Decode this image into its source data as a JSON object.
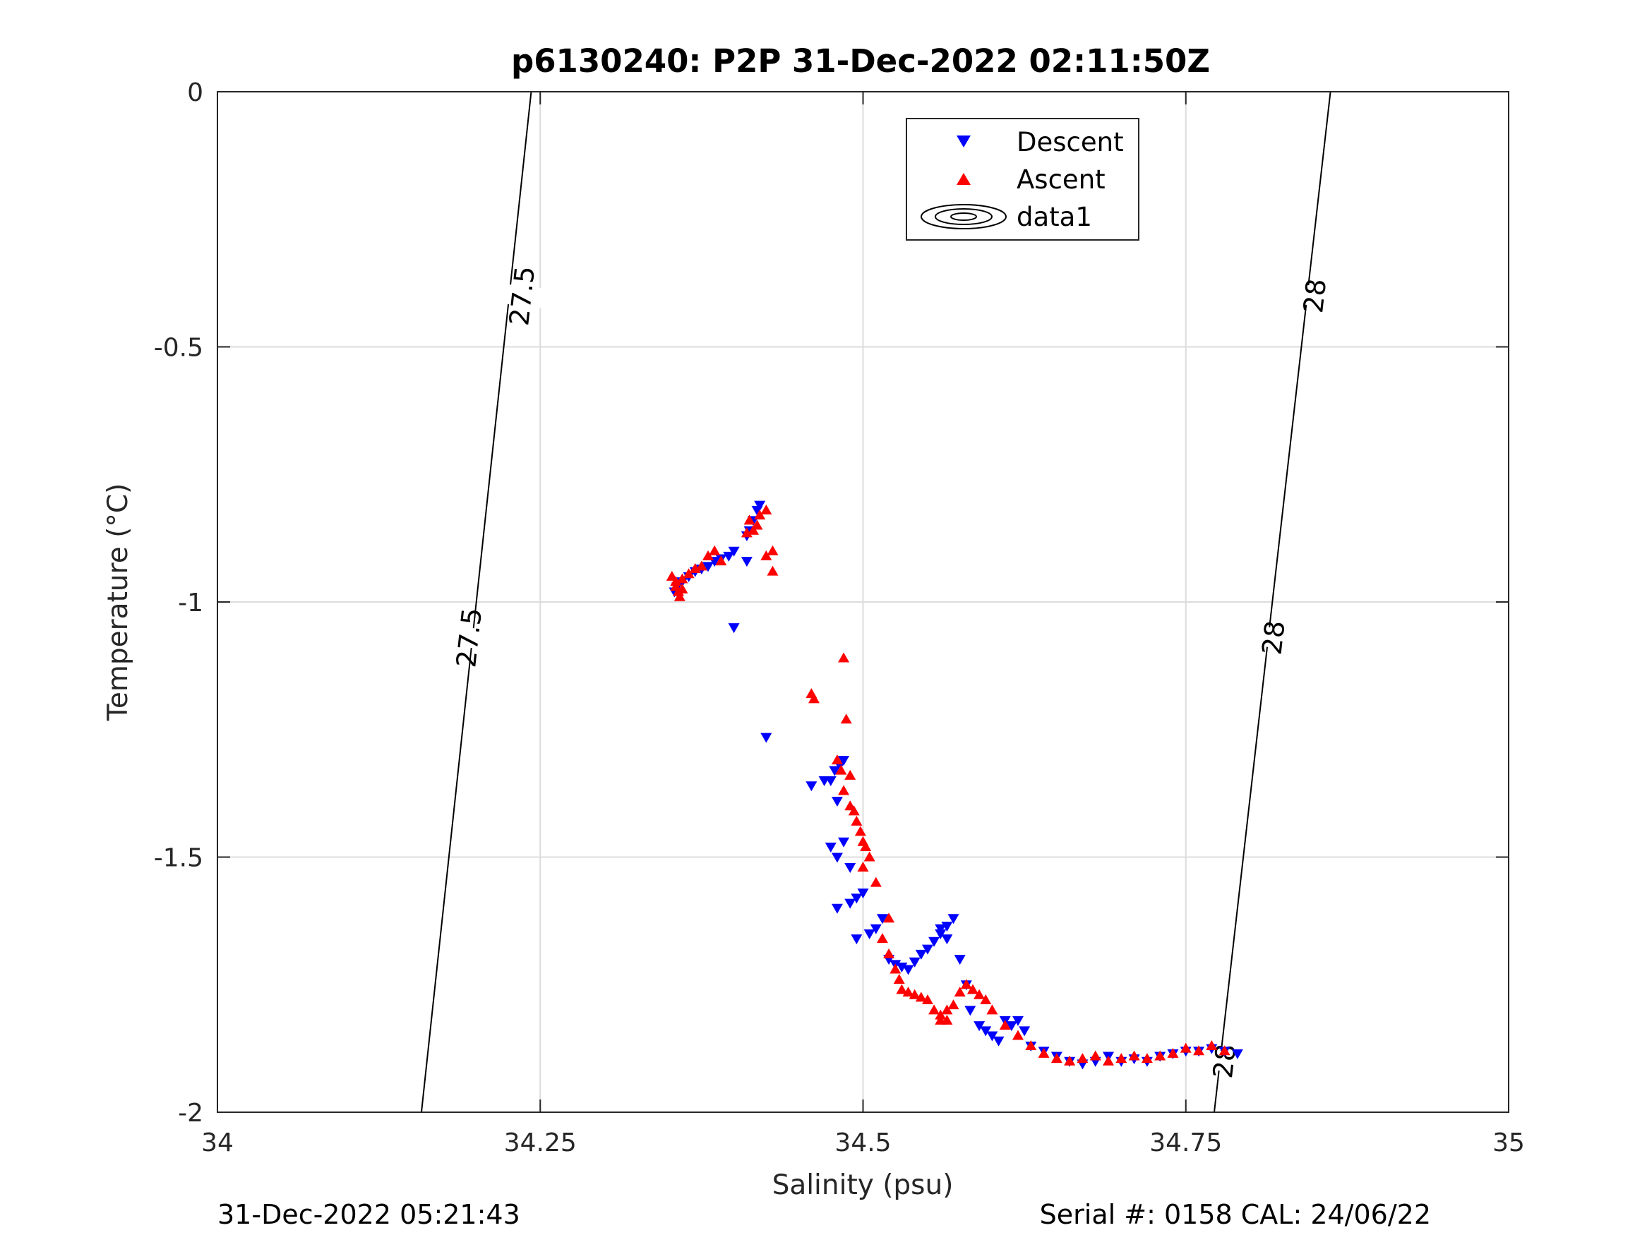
{
  "footer": {
    "timestamp": "31-Dec-2022 05:21:43",
    "serial": "Serial #: 0158  CAL: 24/06/22"
  },
  "chart_data": {
    "type": "scatter",
    "title": "p6130240: P2P 31-Dec-2022 02:11:50Z",
    "xlabel": "Salinity (psu)",
    "ylabel": "Temperature (°C)",
    "xlim": [
      34,
      35
    ],
    "ylim": [
      -2,
      0
    ],
    "xticks": [
      34,
      34.25,
      34.5,
      34.75,
      35
    ],
    "xtick_labels": [
      "34",
      "34.25",
      "34.5",
      "34.75",
      "35"
    ],
    "yticks": [
      0,
      -0.5,
      -1,
      -1.5,
      -2
    ],
    "ytick_labels": [
      "0",
      "-0.5",
      "-1",
      "-1.5",
      "-2"
    ],
    "grid": true,
    "legend": {
      "placement": "top-center",
      "entries": [
        "Descent",
        "Ascent",
        "data1"
      ]
    },
    "series": [
      {
        "name": "Descent",
        "color": "#0000ff",
        "marker": "triangle-down",
        "points": [
          [
            34.42,
            -0.81
          ],
          [
            34.418,
            -0.82
          ],
          [
            34.415,
            -0.84
          ],
          [
            34.412,
            -0.86
          ],
          [
            34.41,
            -0.87
          ],
          [
            34.41,
            -0.92
          ],
          [
            34.4,
            -0.9
          ],
          [
            34.396,
            -0.91
          ],
          [
            34.39,
            -0.915
          ],
          [
            34.385,
            -0.92
          ],
          [
            34.38,
            -0.93
          ],
          [
            34.375,
            -0.935
          ],
          [
            34.37,
            -0.94
          ],
          [
            34.365,
            -0.95
          ],
          [
            34.36,
            -0.96
          ],
          [
            34.356,
            -0.97
          ],
          [
            34.354,
            -0.98
          ],
          [
            34.4,
            -1.05
          ],
          [
            34.425,
            -1.265
          ],
          [
            34.485,
            -1.31
          ],
          [
            34.482,
            -1.32
          ],
          [
            34.478,
            -1.33
          ],
          [
            34.475,
            -1.35
          ],
          [
            34.47,
            -1.35
          ],
          [
            34.46,
            -1.36
          ],
          [
            34.48,
            -1.39
          ],
          [
            34.475,
            -1.48
          ],
          [
            34.485,
            -1.47
          ],
          [
            34.48,
            -1.5
          ],
          [
            34.49,
            -1.52
          ],
          [
            34.5,
            -1.57
          ],
          [
            34.495,
            -1.58
          ],
          [
            34.49,
            -1.59
          ],
          [
            34.48,
            -1.6
          ],
          [
            34.515,
            -1.62
          ],
          [
            34.51,
            -1.64
          ],
          [
            34.505,
            -1.65
          ],
          [
            34.495,
            -1.66
          ],
          [
            34.52,
            -1.7
          ],
          [
            34.525,
            -1.71
          ],
          [
            34.53,
            -1.715
          ],
          [
            34.535,
            -1.72
          ],
          [
            34.54,
            -1.705
          ],
          [
            34.545,
            -1.69
          ],
          [
            34.55,
            -1.68
          ],
          [
            34.555,
            -1.665
          ],
          [
            34.56,
            -1.65
          ],
          [
            34.565,
            -1.635
          ],
          [
            34.57,
            -1.62
          ],
          [
            34.565,
            -1.66
          ],
          [
            34.56,
            -1.64
          ],
          [
            34.575,
            -1.7
          ],
          [
            34.58,
            -1.75
          ],
          [
            34.583,
            -1.8
          ],
          [
            34.59,
            -1.83
          ],
          [
            34.595,
            -1.84
          ],
          [
            34.6,
            -1.85
          ],
          [
            34.605,
            -1.86
          ],
          [
            34.61,
            -1.82
          ],
          [
            34.615,
            -1.83
          ],
          [
            34.62,
            -1.82
          ],
          [
            34.625,
            -1.84
          ],
          [
            34.63,
            -1.87
          ],
          [
            34.64,
            -1.88
          ],
          [
            34.65,
            -1.89
          ],
          [
            34.66,
            -1.9
          ],
          [
            34.67,
            -1.905
          ],
          [
            34.68,
            -1.9
          ],
          [
            34.69,
            -1.89
          ],
          [
            34.7,
            -1.9
          ],
          [
            34.71,
            -1.895
          ],
          [
            34.72,
            -1.9
          ],
          [
            34.73,
            -1.89
          ],
          [
            34.74,
            -1.885
          ],
          [
            34.75,
            -1.88
          ],
          [
            34.76,
            -1.88
          ],
          [
            34.77,
            -1.875
          ],
          [
            34.78,
            -1.88
          ],
          [
            34.79,
            -1.885
          ]
        ]
      },
      {
        "name": "Ascent",
        "color": "#ff0000",
        "marker": "triangle-up",
        "points": [
          [
            34.42,
            -0.83
          ],
          [
            34.418,
            -0.85
          ],
          [
            34.415,
            -0.86
          ],
          [
            34.412,
            -0.84
          ],
          [
            34.41,
            -0.865
          ],
          [
            34.425,
            -0.82
          ],
          [
            34.43,
            -0.9
          ],
          [
            34.425,
            -0.91
          ],
          [
            34.43,
            -0.94
          ],
          [
            34.39,
            -0.92
          ],
          [
            34.385,
            -0.9
          ],
          [
            34.38,
            -0.91
          ],
          [
            34.375,
            -0.93
          ],
          [
            34.37,
            -0.935
          ],
          [
            34.365,
            -0.945
          ],
          [
            34.36,
            -0.955
          ],
          [
            34.355,
            -0.96
          ],
          [
            34.352,
            -0.95
          ],
          [
            34.355,
            -0.97
          ],
          [
            34.357,
            -0.98
          ],
          [
            34.358,
            -0.99
          ],
          [
            34.36,
            -0.975
          ],
          [
            34.485,
            -1.11
          ],
          [
            34.46,
            -1.18
          ],
          [
            34.462,
            -1.19
          ],
          [
            34.487,
            -1.23
          ],
          [
            34.48,
            -1.31
          ],
          [
            34.483,
            -1.33
          ],
          [
            34.49,
            -1.34
          ],
          [
            34.485,
            -1.37
          ],
          [
            34.49,
            -1.4
          ],
          [
            34.493,
            -1.41
          ],
          [
            34.495,
            -1.43
          ],
          [
            34.498,
            -1.45
          ],
          [
            34.5,
            -1.47
          ],
          [
            34.502,
            -1.48
          ],
          [
            34.505,
            -1.5
          ],
          [
            34.5,
            -1.52
          ],
          [
            34.51,
            -1.55
          ],
          [
            34.52,
            -1.62
          ],
          [
            34.515,
            -1.66
          ],
          [
            34.52,
            -1.69
          ],
          [
            34.525,
            -1.72
          ],
          [
            34.528,
            -1.74
          ],
          [
            34.53,
            -1.76
          ],
          [
            34.535,
            -1.765
          ],
          [
            34.54,
            -1.77
          ],
          [
            34.545,
            -1.775
          ],
          [
            34.55,
            -1.78
          ],
          [
            34.555,
            -1.8
          ],
          [
            34.56,
            -1.81
          ],
          [
            34.565,
            -1.82
          ],
          [
            34.57,
            -1.79
          ],
          [
            34.565,
            -1.8
          ],
          [
            34.56,
            -1.82
          ],
          [
            34.575,
            -1.765
          ],
          [
            34.58,
            -1.75
          ],
          [
            34.585,
            -1.76
          ],
          [
            34.59,
            -1.77
          ],
          [
            34.595,
            -1.78
          ],
          [
            34.6,
            -1.8
          ],
          [
            34.61,
            -1.83
          ],
          [
            34.62,
            -1.85
          ],
          [
            34.63,
            -1.87
          ],
          [
            34.64,
            -1.885
          ],
          [
            34.65,
            -1.895
          ],
          [
            34.66,
            -1.9
          ],
          [
            34.67,
            -1.895
          ],
          [
            34.68,
            -1.89
          ],
          [
            34.69,
            -1.9
          ],
          [
            34.7,
            -1.895
          ],
          [
            34.71,
            -1.89
          ],
          [
            34.72,
            -1.895
          ],
          [
            34.73,
            -1.89
          ],
          [
            34.74,
            -1.885
          ],
          [
            34.75,
            -1.875
          ],
          [
            34.76,
            -1.88
          ],
          [
            34.77,
            -1.87
          ],
          [
            34.78,
            -1.88
          ]
        ]
      },
      {
        "name": "data1",
        "type": "contour",
        "color": "#000000",
        "lines": [
          {
            "level": "27.5",
            "points": [
              [
                34.243,
                0
              ],
              [
                34.158,
                -2
              ]
            ],
            "labels": [
              [
                34.236,
                -0.4
              ],
              [
                34.195,
                -1.07
              ]
            ]
          },
          {
            "level": "28",
            "points": [
              [
                34.862,
                0
              ],
              [
                34.772,
                -2
              ]
            ],
            "labels": [
              [
                34.85,
                -0.4
              ],
              [
                34.818,
                -1.07
              ],
              [
                34.78,
                -1.9
              ]
            ]
          }
        ]
      }
    ]
  }
}
